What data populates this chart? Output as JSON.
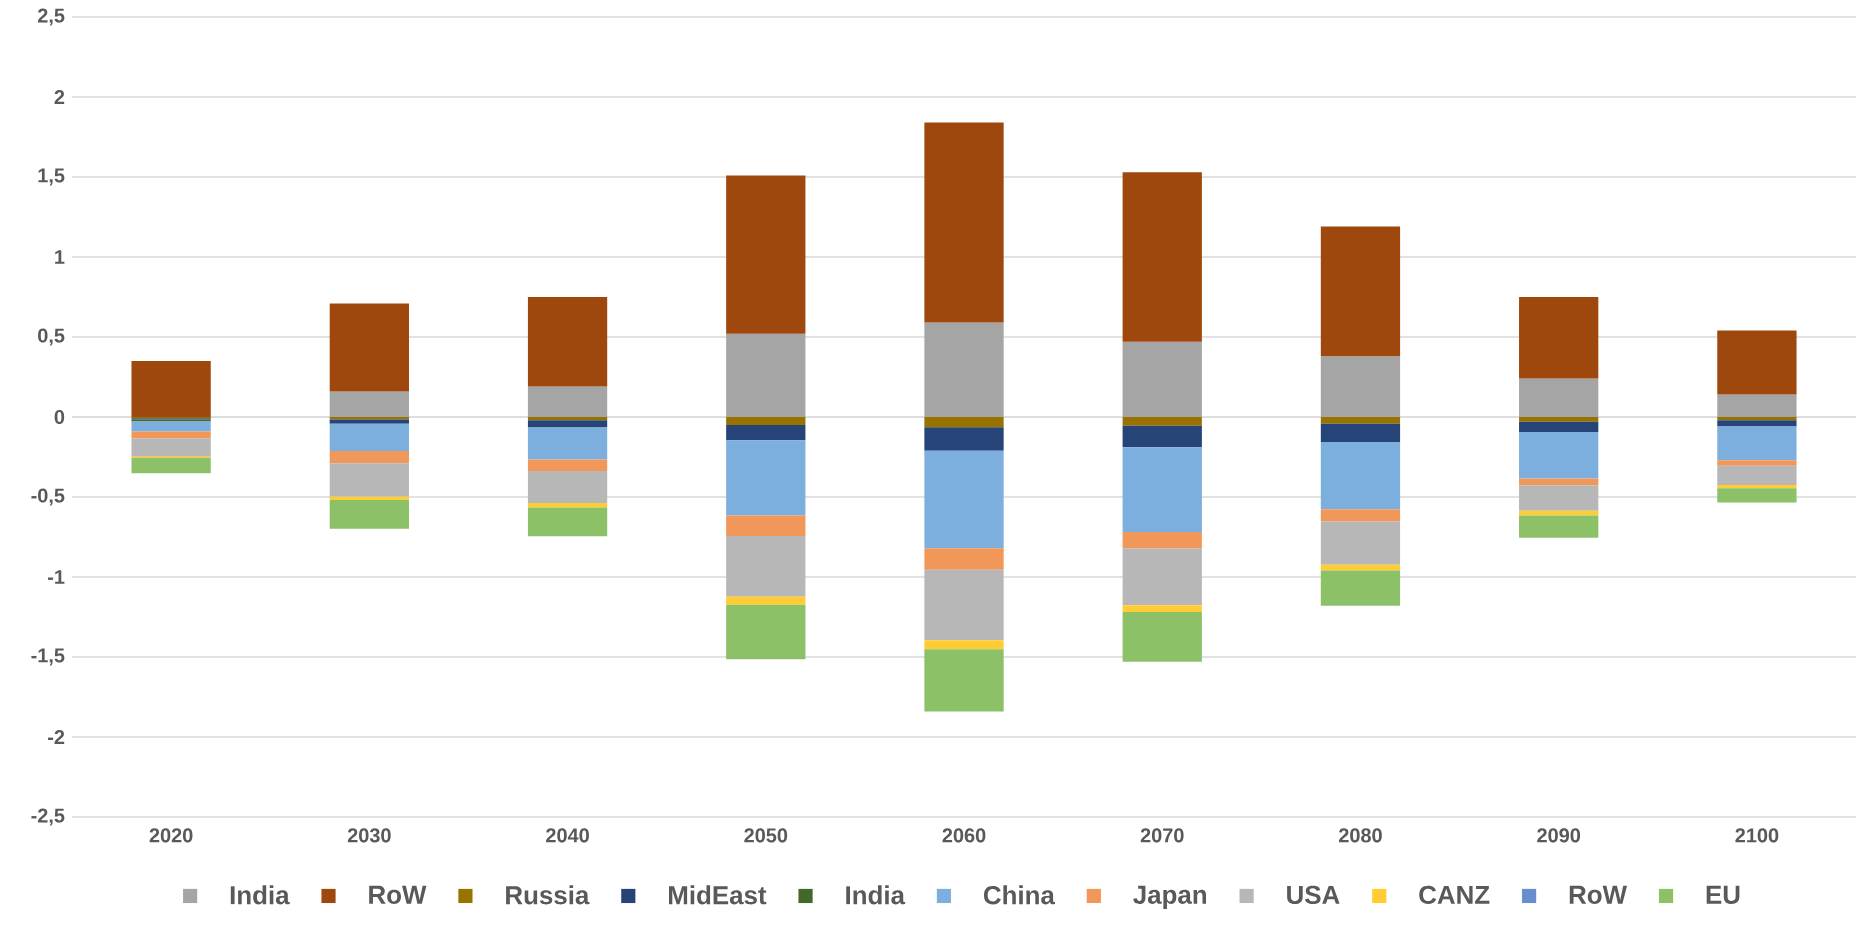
{
  "chart_data": {
    "type": "bar",
    "stacked": true,
    "categories": [
      "2020",
      "2030",
      "2040",
      "2050",
      "2060",
      "2070",
      "2080",
      "2090",
      "2100"
    ],
    "series": [
      {
        "name": "India",
        "color": "#a5a5a5",
        "values": [
          0,
          0.16,
          0.19,
          0.52,
          0.59,
          0.47,
          0.38,
          0.24,
          0.14
        ]
      },
      {
        "name": "RoW",
        "color": "#9e480e",
        "values": [
          0.35,
          0.55,
          0.56,
          0.99,
          1.25,
          1.06,
          0.81,
          0.51,
          0.4
        ]
      },
      {
        "name": "Russia",
        "color": "#997300",
        "values": [
          -0.008,
          -0.016,
          -0.02,
          -0.05,
          -0.064,
          -0.055,
          -0.042,
          -0.03,
          -0.02
        ]
      },
      {
        "name": "MidEast",
        "color": "#264478",
        "values": [
          -0.008,
          -0.026,
          -0.045,
          -0.096,
          -0.147,
          -0.134,
          -0.114,
          -0.064,
          -0.04
        ]
      },
      {
        "name": "India",
        "color": "#43682b",
        "values": [
          -0.012,
          0,
          0,
          0,
          0,
          0,
          0,
          0,
          0
        ]
      },
      {
        "name": "China",
        "color": "#7cafdd",
        "values": [
          -0.063,
          -0.17,
          -0.2,
          -0.47,
          -0.61,
          -0.53,
          -0.42,
          -0.29,
          -0.21
        ]
      },
      {
        "name": "Japan",
        "color": "#f1975a",
        "values": [
          -0.043,
          -0.077,
          -0.073,
          -0.128,
          -0.134,
          -0.103,
          -0.077,
          -0.042,
          -0.035
        ]
      },
      {
        "name": "USA",
        "color": "#b7b7b7",
        "values": [
          -0.114,
          -0.21,
          -0.2,
          -0.38,
          -0.44,
          -0.355,
          -0.27,
          -0.16,
          -0.12
        ]
      },
      {
        "name": "CANZ",
        "color": "#ffcd33",
        "values": [
          -0.008,
          -0.02,
          -0.028,
          -0.05,
          -0.056,
          -0.042,
          -0.037,
          -0.029,
          -0.02
        ]
      },
      {
        "name": "RoW",
        "color": "#698ed0",
        "values": [
          0,
          0,
          0,
          0,
          0,
          0,
          0,
          0,
          0
        ]
      },
      {
        "name": "EU",
        "color": "#8cc168",
        "values": [
          -0.095,
          -0.18,
          -0.18,
          -0.34,
          -0.39,
          -0.31,
          -0.22,
          -0.14,
          -0.09
        ]
      }
    ],
    "ylim": [
      -2.5,
      2.5
    ],
    "yticks": [
      {
        "value": -2.5,
        "label": "-2,5"
      },
      -2,
      {
        "value": -1.5,
        "label": "-1,5"
      },
      -1,
      {
        "value": -0.5,
        "label": "-0,5"
      },
      0,
      {
        "value": 0.5,
        "label": "0,5"
      },
      1,
      {
        "value": 1.5,
        "label": "1,5"
      },
      2,
      {
        "value": 2.5,
        "label": "2,5"
      }
    ],
    "grid": "y",
    "legend": "bottom"
  }
}
